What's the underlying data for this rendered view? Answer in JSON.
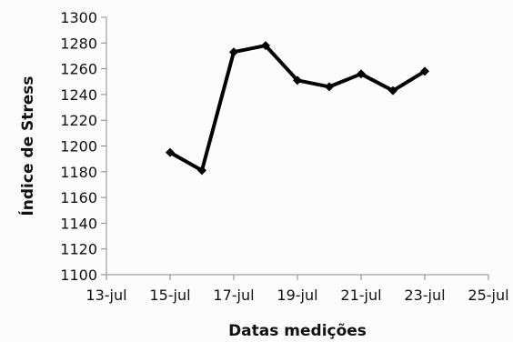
{
  "chart_data": {
    "type": "line",
    "title": "",
    "xlabel": "Datas medições",
    "ylabel": "Índice de Stress",
    "x_ticks": [
      "13-jul",
      "15-jul",
      "17-jul",
      "19-jul",
      "21-jul",
      "23-jul",
      "25-jul"
    ],
    "y_ticks": [
      "1100",
      "1120",
      "1140",
      "1160",
      "1180",
      "1200",
      "1220",
      "1240",
      "1260",
      "1280",
      "1300"
    ],
    "x_unit": "day of July",
    "xlim": [
      13,
      25
    ],
    "ylim": [
      1100,
      1300
    ],
    "grid": false,
    "legend": "none",
    "series": [
      {
        "color": "#000000",
        "marker": "diamond",
        "x": [
          "15-jul",
          "16-jul",
          "17-jul",
          "18-jul",
          "19-jul",
          "20-jul",
          "21-jul",
          "22-jul",
          "23-jul"
        ],
        "x_day": [
          15,
          16,
          17,
          18,
          19,
          20,
          21,
          22,
          23
        ],
        "values": [
          1195,
          1181,
          1273,
          1278,
          1251,
          1246,
          1256,
          1243,
          1258
        ]
      }
    ]
  }
}
